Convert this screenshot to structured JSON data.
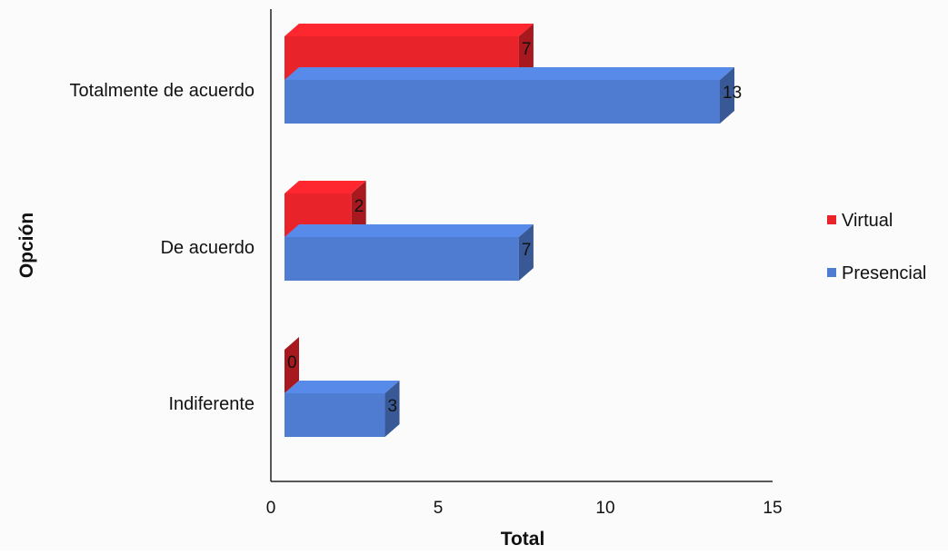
{
  "chart_data": {
    "type": "bar",
    "orientation": "horizontal",
    "style": "3d",
    "categories": [
      "Totalmente de acuerdo",
      "De acuerdo",
      "Indiferente"
    ],
    "series": [
      {
        "name": "Virtual",
        "values": [
          7,
          2,
          0
        ],
        "color": "#e8232a"
      },
      {
        "name": "Presencial",
        "values": [
          13,
          7,
          3
        ],
        "color": "#4f7bd0"
      }
    ],
    "xlabel": "Total",
    "ylabel": "Opción",
    "xlim": [
      0,
      15
    ],
    "xticks": [
      "0",
      "5",
      "10",
      "15"
    ],
    "grid": false,
    "legend_position": "right"
  }
}
